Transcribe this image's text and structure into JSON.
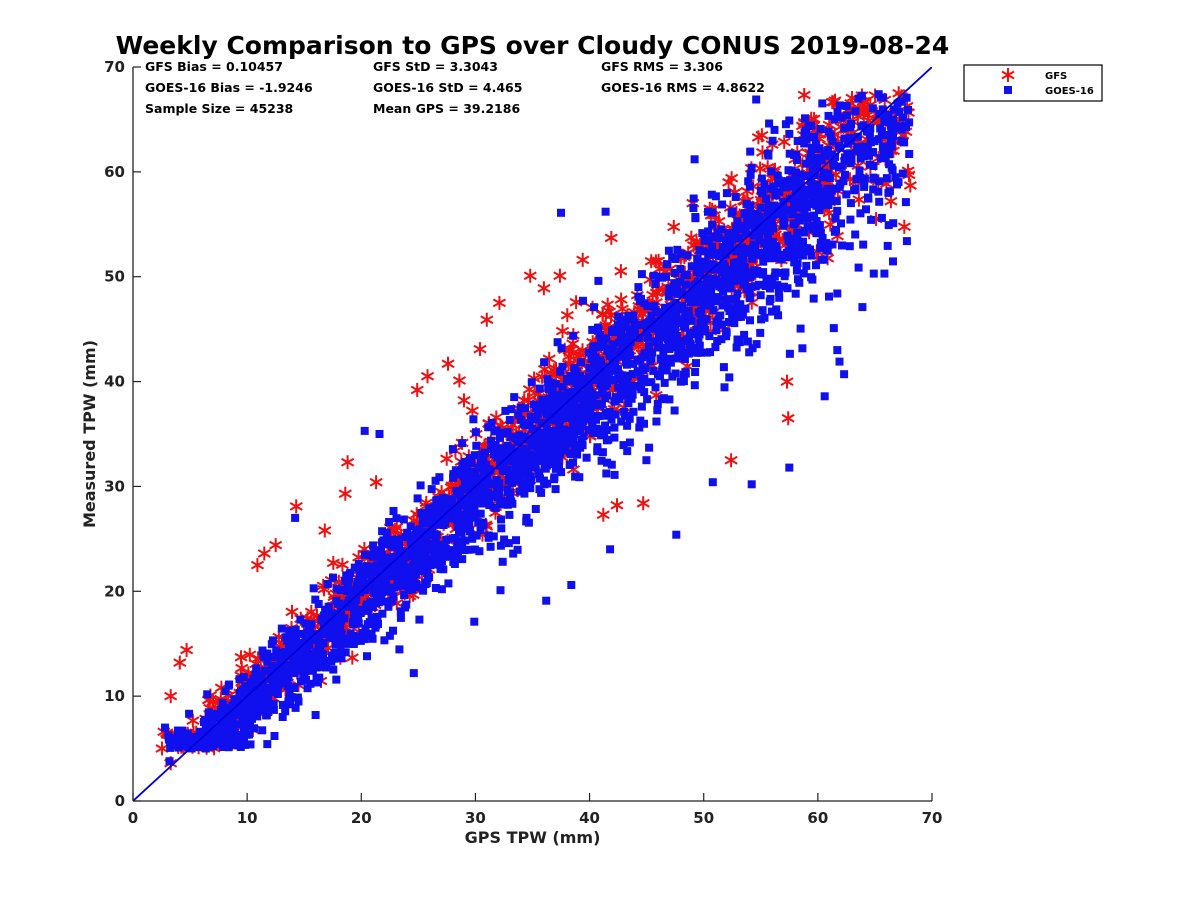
{
  "chart_data": {
    "type": "scatter",
    "title": "Weekly Comparison to GPS over Cloudy CONUS 2019-08-24",
    "xlabel": "GPS TPW (mm)",
    "ylabel": "Measured TPW (mm)",
    "xlim": [
      0,
      70
    ],
    "ylim": [
      0,
      70
    ],
    "xticks": [
      0,
      10,
      20,
      30,
      40,
      50,
      60,
      70
    ],
    "yticks": [
      0,
      10,
      20,
      30,
      40,
      50,
      60,
      70
    ],
    "grid": false,
    "legend_position": "top-right outside",
    "stats": [
      [
        "GFS Bias = 0.10457",
        "GFS StD = 3.3043",
        "GFS RMS = 3.306"
      ],
      [
        "GOES-16 Bias = -1.9246",
        "GOES-16 StD = 4.465",
        "GOES-16 RMS = 4.8622"
      ],
      [
        "Sample Size = 45238",
        "Mean GPS = 39.2186",
        ""
      ]
    ],
    "reference_line": {
      "x": [
        0,
        70
      ],
      "y": [
        0,
        70
      ],
      "color": "#0000dd"
    },
    "series": [
      {
        "name": "GFS",
        "marker": "asterisk",
        "color": "#ee1111",
        "sample_size": 45238,
        "mean_x": 39.2186,
        "bias": 0.10457,
        "std": 3.3043,
        "x_range": [
          2.5,
          68
        ],
        "outliers": [
          [
            2.7,
            6.6
          ],
          [
            3.3,
            3.6
          ],
          [
            3.3,
            10.0
          ],
          [
            4.1,
            13.2
          ],
          [
            4.7,
            14.4
          ],
          [
            7.0,
            5.3
          ],
          [
            8.7,
            5.5
          ],
          [
            10.9,
            22.5
          ],
          [
            11.5,
            23.6
          ],
          [
            12.5,
            24.4
          ],
          [
            14.3,
            28.1
          ],
          [
            16.8,
            25.8
          ],
          [
            18.8,
            32.3
          ],
          [
            18.6,
            29.3
          ],
          [
            21.3,
            30.4
          ],
          [
            24.9,
            39.2
          ],
          [
            25.8,
            40.5
          ],
          [
            27.6,
            41.7
          ],
          [
            28.6,
            40.1
          ],
          [
            29.0,
            38.2
          ],
          [
            30.4,
            43.1
          ],
          [
            31.0,
            45.9
          ],
          [
            32.1,
            47.5
          ],
          [
            34.8,
            50.1
          ],
          [
            36.0,
            48.9
          ],
          [
            37.4,
            50.1
          ],
          [
            39.4,
            51.6
          ],
          [
            41.9,
            53.7
          ],
          [
            48.1,
            44.2
          ],
          [
            52.4,
            32.5
          ],
          [
            57.4,
            36.5
          ],
          [
            57.3,
            40.0
          ],
          [
            55.1,
            63.5
          ],
          [
            59.6,
            64.4
          ],
          [
            61.5,
            66.8
          ],
          [
            62.6,
            65.9
          ],
          [
            63.5,
            65.3
          ],
          [
            64.3,
            63.1
          ],
          [
            64.6,
            60.5
          ],
          [
            65.3,
            59.1
          ],
          [
            66.4,
            57.2
          ],
          [
            67.9,
            60.1
          ],
          [
            68.1,
            58.7
          ],
          [
            65.1,
            55.5
          ],
          [
            63.6,
            61.8
          ],
          [
            44.7,
            28.4
          ],
          [
            42.4,
            28.2
          ],
          [
            41.2,
            27.3
          ],
          [
            38.2,
            33.5
          ]
        ]
      },
      {
        "name": "GOES-16",
        "marker": "square",
        "color": "#1010ee",
        "sample_size": 45238,
        "mean_x": 39.2186,
        "bias": -1.9246,
        "std": 4.465,
        "x_range": [
          3,
          68
        ],
        "outliers": [
          [
            3.2,
            3.8
          ],
          [
            2.8,
            7.0
          ],
          [
            5.0,
            5.6
          ],
          [
            14.2,
            27.0
          ],
          [
            20.3,
            35.3
          ],
          [
            21.6,
            35.0
          ],
          [
            25.2,
            30.1
          ],
          [
            28.1,
            27.4
          ],
          [
            37.5,
            56.1
          ],
          [
            41.4,
            56.2
          ],
          [
            49.2,
            61.2
          ],
          [
            54.6,
            66.9
          ],
          [
            57.5,
            64.9
          ],
          [
            59.4,
            63.3
          ],
          [
            62.1,
            60.5
          ],
          [
            68.0,
            61.7
          ],
          [
            67.8,
            53.4
          ],
          [
            66.6,
            55.1
          ],
          [
            64.9,
            50.3
          ],
          [
            63.9,
            47.1
          ],
          [
            61.7,
            48.4
          ],
          [
            61.7,
            43.0
          ],
          [
            61.9,
            41.9
          ],
          [
            62.3,
            40.7
          ],
          [
            60.6,
            38.6
          ],
          [
            61.4,
            45.1
          ],
          [
            57.5,
            31.8
          ],
          [
            54.2,
            30.2
          ],
          [
            50.8,
            30.4
          ],
          [
            47.6,
            25.4
          ],
          [
            41.8,
            24.0
          ],
          [
            38.4,
            20.6
          ],
          [
            36.2,
            19.1
          ],
          [
            32.2,
            20.1
          ],
          [
            29.9,
            17.1
          ],
          [
            24.6,
            12.2
          ],
          [
            16.0,
            8.2
          ],
          [
            12.4,
            6.2
          ],
          [
            9.2,
            5.3
          ],
          [
            6.4,
            5.1
          ],
          [
            53.9,
            59.1
          ],
          [
            52.8,
            57.6
          ],
          [
            56.2,
            64.0
          ],
          [
            58.8,
            62.7
          ]
        ]
      }
    ]
  }
}
